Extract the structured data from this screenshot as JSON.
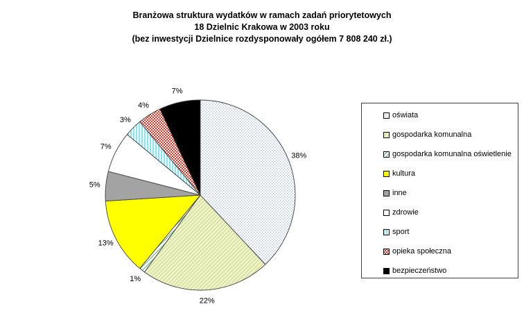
{
  "title": {
    "line1": "Branżowa struktura wydatków w ramach zadań priorytetowych",
    "line2": "18 Dzielnic Krakowa w 2003 roku",
    "line3": "(bez inwestycji Dzielnice rozdysponowały ogółem 7 808 240 zł.)"
  },
  "chart_data": {
    "type": "pie",
    "title_lines": [
      "Branżowa struktura wydatków w ramach zadań priorytetowych",
      "18 Dzielnic Krakowa w 2003 roku",
      "(bez inwestycji Dzielnice rozdysponowały ogółem 7 808 240 zł.)"
    ],
    "total_label": "7 808 240 zł.",
    "direction": "clockwise",
    "start_angle_deg": 0,
    "legend_position": "right",
    "outline_color": "#404040",
    "label_color": "#000000",
    "legend_border_color": "#404040",
    "slices": [
      {
        "label": "oświata",
        "pct": 38,
        "display_label": "38%",
        "fill": "pattern:dots"
      },
      {
        "label": "gospodarka komunalna",
        "pct": 22,
        "display_label": "22%",
        "fill": "pattern:olive"
      },
      {
        "label": "gospodarka komunalna oświetlenie",
        "pct": 1,
        "display_label": "1%",
        "fill": "pattern:green"
      },
      {
        "label": "kultura",
        "pct": 13,
        "display_label": "13%",
        "fill": "solid:#ffff00"
      },
      {
        "label": "inne",
        "pct": 5,
        "display_label": "5%",
        "fill": "solid:#a3a3a3"
      },
      {
        "label": "zdrowie",
        "pct": 7,
        "display_label": "7%",
        "fill": "solid:#ffffff"
      },
      {
        "label": "sport",
        "pct": 3,
        "display_label": "3%",
        "fill": "pattern:cyan"
      },
      {
        "label": "opieka społeczna",
        "pct": 4,
        "display_label": "4%",
        "fill": "pattern:red"
      },
      {
        "label": "bezpieczeństwo",
        "pct": 7,
        "display_label": "7%",
        "fill": "solid:#000000"
      }
    ],
    "patterns": {
      "dots": {
        "kind": "dots",
        "bg": "#ffffff",
        "fg": "#a8b6d4"
      },
      "olive": {
        "kind": "hatch",
        "bg": "#f0f4ca",
        "fg": "#ccd78e",
        "rotate": -45
      },
      "green": {
        "kind": "hatch",
        "bg": "#ffffff",
        "fg": "#5fb37a",
        "rotate": -45
      },
      "cyan": {
        "kind": "vstripes",
        "bg": "#ffffff",
        "fg": "#8fe3f0"
      },
      "red": {
        "kind": "checker",
        "bg": "#ffffff",
        "fg": "#e63022"
      }
    }
  }
}
